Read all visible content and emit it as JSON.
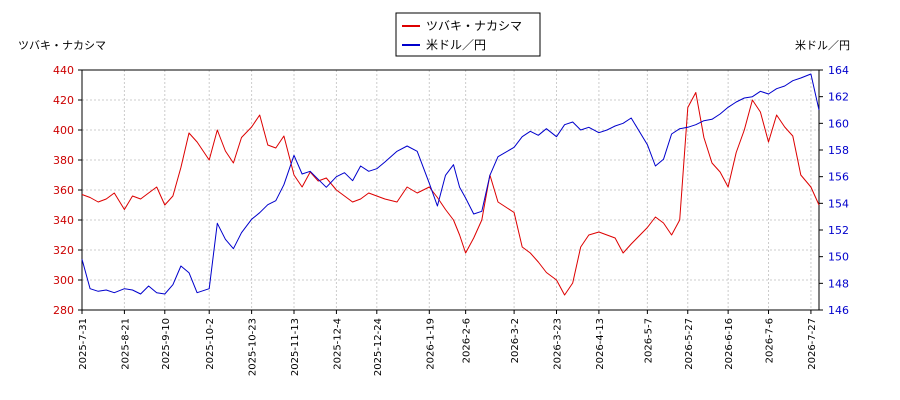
{
  "chart_data": {
    "type": "line",
    "left_axis_label": "ツバキ・ナカシマ",
    "right_axis_label": "米ドル／円",
    "legend": [
      {
        "name": "ツバキ・ナカシマ",
        "color": "#dd0000"
      },
      {
        "name": "米ドル／円",
        "color": "#0000cc"
      }
    ],
    "left_ylim": [
      280,
      440
    ],
    "left_ticks": [
      280,
      300,
      320,
      340,
      360,
      380,
      400,
      420,
      440
    ],
    "right_ylim": [
      146,
      164
    ],
    "right_ticks": [
      146,
      148,
      150,
      152,
      154,
      156,
      158,
      160,
      162,
      164
    ],
    "x_range": [
      "2025-07-31",
      "2026-07-31"
    ],
    "x_ticks": [
      "2025-7-31",
      "2025-8-21",
      "2025-9-10",
      "2025-10-2",
      "2025-10-23",
      "2025-11-13",
      "2025-12-4",
      "2025-12-24",
      "2026-1-19",
      "2026-2-6",
      "2026-3-2",
      "2026-3-23",
      "2026-4-13",
      "2026-5-7",
      "2026-5-27",
      "2026-6-16",
      "2026-7-6",
      "2026-7-27"
    ],
    "grid": true,
    "series": [
      {
        "name": "ツバキ・ナカシマ",
        "axis": "left",
        "color": "#dd0000",
        "x": [
          "2025-07-31",
          "2025-08-04",
          "2025-08-08",
          "2025-08-12",
          "2025-08-16",
          "2025-08-21",
          "2025-08-25",
          "2025-08-29",
          "2025-09-02",
          "2025-09-06",
          "2025-09-10",
          "2025-09-14",
          "2025-09-18",
          "2025-09-22",
          "2025-09-26",
          "2025-10-02",
          "2025-10-06",
          "2025-10-10",
          "2025-10-14",
          "2025-10-18",
          "2025-10-23",
          "2025-10-27",
          "2025-10-31",
          "2025-11-04",
          "2025-11-08",
          "2025-11-13",
          "2025-11-17",
          "2025-11-21",
          "2025-11-25",
          "2025-11-29",
          "2025-12-04",
          "2025-12-08",
          "2025-12-12",
          "2025-12-16",
          "2025-12-20",
          "2025-12-24",
          "2025-12-28",
          "2026-01-03",
          "2026-01-08",
          "2026-01-13",
          "2026-01-19",
          "2026-01-23",
          "2026-01-27",
          "2026-01-31",
          "2026-02-03",
          "2026-02-06",
          "2026-02-10",
          "2026-02-14",
          "2026-02-18",
          "2026-02-22",
          "2026-03-02",
          "2026-03-06",
          "2026-03-10",
          "2026-03-14",
          "2026-03-18",
          "2026-03-23",
          "2026-03-27",
          "2026-03-31",
          "2026-04-04",
          "2026-04-08",
          "2026-04-13",
          "2026-04-17",
          "2026-04-21",
          "2026-04-25",
          "2026-04-29",
          "2026-05-07",
          "2026-05-11",
          "2026-05-15",
          "2026-05-19",
          "2026-05-23",
          "2026-05-27",
          "2026-05-31",
          "2026-06-04",
          "2026-06-08",
          "2026-06-12",
          "2026-06-16",
          "2026-06-20",
          "2026-06-24",
          "2026-06-28",
          "2026-07-02",
          "2026-07-06",
          "2026-07-10",
          "2026-07-14",
          "2026-07-18",
          "2026-07-22",
          "2026-07-27",
          "2026-07-31"
        ],
        "values": [
          357,
          355,
          352,
          354,
          358,
          347,
          356,
          354,
          358,
          362,
          350,
          356,
          375,
          398,
          392,
          380,
          400,
          386,
          378,
          395,
          402,
          410,
          390,
          388,
          396,
          370,
          362,
          372,
          366,
          368,
          360,
          356,
          352,
          354,
          358,
          356,
          354,
          352,
          362,
          358,
          362,
          355,
          347,
          340,
          330,
          318,
          328,
          340,
          370,
          352,
          345,
          322,
          318,
          312,
          305,
          300,
          290,
          298,
          322,
          330,
          332,
          330,
          328,
          318,
          324,
          335,
          342,
          338,
          330,
          340,
          415,
          425,
          395,
          378,
          372,
          362,
          385,
          400,
          420,
          412,
          392,
          410,
          402,
          396,
          370,
          362,
          350
        ]
      },
      {
        "name": "米ドル／円",
        "axis": "right",
        "color": "#0000cc",
        "x": [
          "2025-07-31",
          "2025-08-04",
          "2025-08-08",
          "2025-08-12",
          "2025-08-16",
          "2025-08-21",
          "2025-08-25",
          "2025-08-29",
          "2025-09-02",
          "2025-09-06",
          "2025-09-10",
          "2025-09-14",
          "2025-09-18",
          "2025-09-22",
          "2025-09-26",
          "2025-10-02",
          "2025-10-06",
          "2025-10-10",
          "2025-10-14",
          "2025-10-18",
          "2025-10-23",
          "2025-10-27",
          "2025-10-31",
          "2025-11-04",
          "2025-11-08",
          "2025-11-13",
          "2025-11-17",
          "2025-11-21",
          "2025-11-25",
          "2025-11-29",
          "2025-12-04",
          "2025-12-08",
          "2025-12-12",
          "2025-12-16",
          "2025-12-20",
          "2025-12-24",
          "2025-12-28",
          "2026-01-03",
          "2026-01-08",
          "2026-01-13",
          "2026-01-19",
          "2026-01-23",
          "2026-01-27",
          "2026-01-31",
          "2026-02-03",
          "2026-02-06",
          "2026-02-10",
          "2026-02-14",
          "2026-02-18",
          "2026-02-22",
          "2026-03-02",
          "2026-03-06",
          "2026-03-10",
          "2026-03-14",
          "2026-03-18",
          "2026-03-23",
          "2026-03-27",
          "2026-03-31",
          "2026-04-04",
          "2026-04-08",
          "2026-04-13",
          "2026-04-17",
          "2026-04-21",
          "2026-04-25",
          "2026-04-29",
          "2026-05-07",
          "2026-05-11",
          "2026-05-15",
          "2026-05-19",
          "2026-05-23",
          "2026-05-27",
          "2026-05-31",
          "2026-06-04",
          "2026-06-08",
          "2026-06-12",
          "2026-06-16",
          "2026-06-20",
          "2026-06-24",
          "2026-06-28",
          "2026-07-02",
          "2026-07-06",
          "2026-07-10",
          "2026-07-14",
          "2026-07-18",
          "2026-07-22",
          "2026-07-27",
          "2026-07-31"
        ],
        "values": [
          149.8,
          147.6,
          147.4,
          147.5,
          147.3,
          147.6,
          147.5,
          147.2,
          147.8,
          147.3,
          147.2,
          147.9,
          149.3,
          148.8,
          147.3,
          147.6,
          152.5,
          151.3,
          150.6,
          151.8,
          152.8,
          153.3,
          153.9,
          154.2,
          155.4,
          157.6,
          156.2,
          156.4,
          155.8,
          155.2,
          156.0,
          156.3,
          155.7,
          156.8,
          156.4,
          156.6,
          157.1,
          157.9,
          158.3,
          157.9,
          155.5,
          153.8,
          156.1,
          156.9,
          155.2,
          154.4,
          153.2,
          153.4,
          156.1,
          157.5,
          158.2,
          159.0,
          159.4,
          159.1,
          159.6,
          159.0,
          159.9,
          160.1,
          159.5,
          159.7,
          159.3,
          159.5,
          159.8,
          160.0,
          160.4,
          158.4,
          156.8,
          157.3,
          159.2,
          159.6,
          159.7,
          159.9,
          160.2,
          160.3,
          160.7,
          161.2,
          161.6,
          161.9,
          162.0,
          162.4,
          162.2,
          162.6,
          162.8,
          163.2,
          163.4,
          163.7,
          161.0
        ]
      }
    ]
  }
}
